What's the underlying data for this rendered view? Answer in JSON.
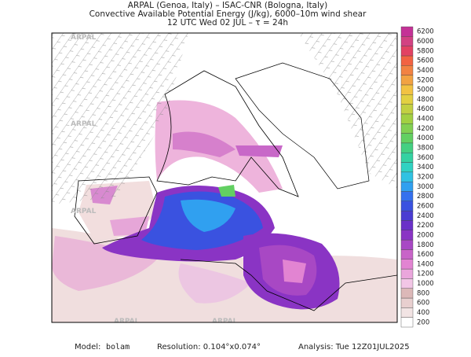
{
  "header": {
    "lines": [
      "ARPAL (Genoa, Italy)  –  ISAC-CNR (Bologna, Italy)",
      "Convective Available Potential Energy (J/kg), 6000–10m wind shear",
      "12 UTC Wed 02 JUL  –  τ = 24h"
    ]
  },
  "watermark": "ARPAL",
  "colorbar": {
    "ticks": [
      200,
      400,
      600,
      800,
      1000,
      1200,
      1400,
      1600,
      1800,
      2000,
      2200,
      2400,
      2600,
      2800,
      3000,
      3200,
      3400,
      3600,
      3800,
      4000,
      4200,
      4400,
      4600,
      4800,
      5000,
      5200,
      5400,
      5600,
      5800,
      6000,
      6200
    ],
    "colors": [
      "#ffffff",
      "#f2e4e4",
      "#e8cfcf",
      "#dcb8b8",
      "#f2c6e6",
      "#eaa6dc",
      "#e284d2",
      "#c864c8",
      "#a848c4",
      "#8a34c4",
      "#6a30c8",
      "#4a3cd2",
      "#3a52e0",
      "#3470ee",
      "#30a0f0",
      "#30c2e2",
      "#30d2c2",
      "#34d2a2",
      "#44d082",
      "#62d062",
      "#82d052",
      "#a2d042",
      "#c2d042",
      "#e2d042",
      "#f2c242",
      "#f2a242",
      "#f28242",
      "#f26242",
      "#e24262",
      "#d24282",
      "#c43296"
    ]
  },
  "footer": {
    "model_label": "Model:",
    "model": "bolam",
    "resolution": "Resolution: 0.104°x0.074°",
    "analysis": "Analysis: Tue 12Z01JUL2025"
  }
}
